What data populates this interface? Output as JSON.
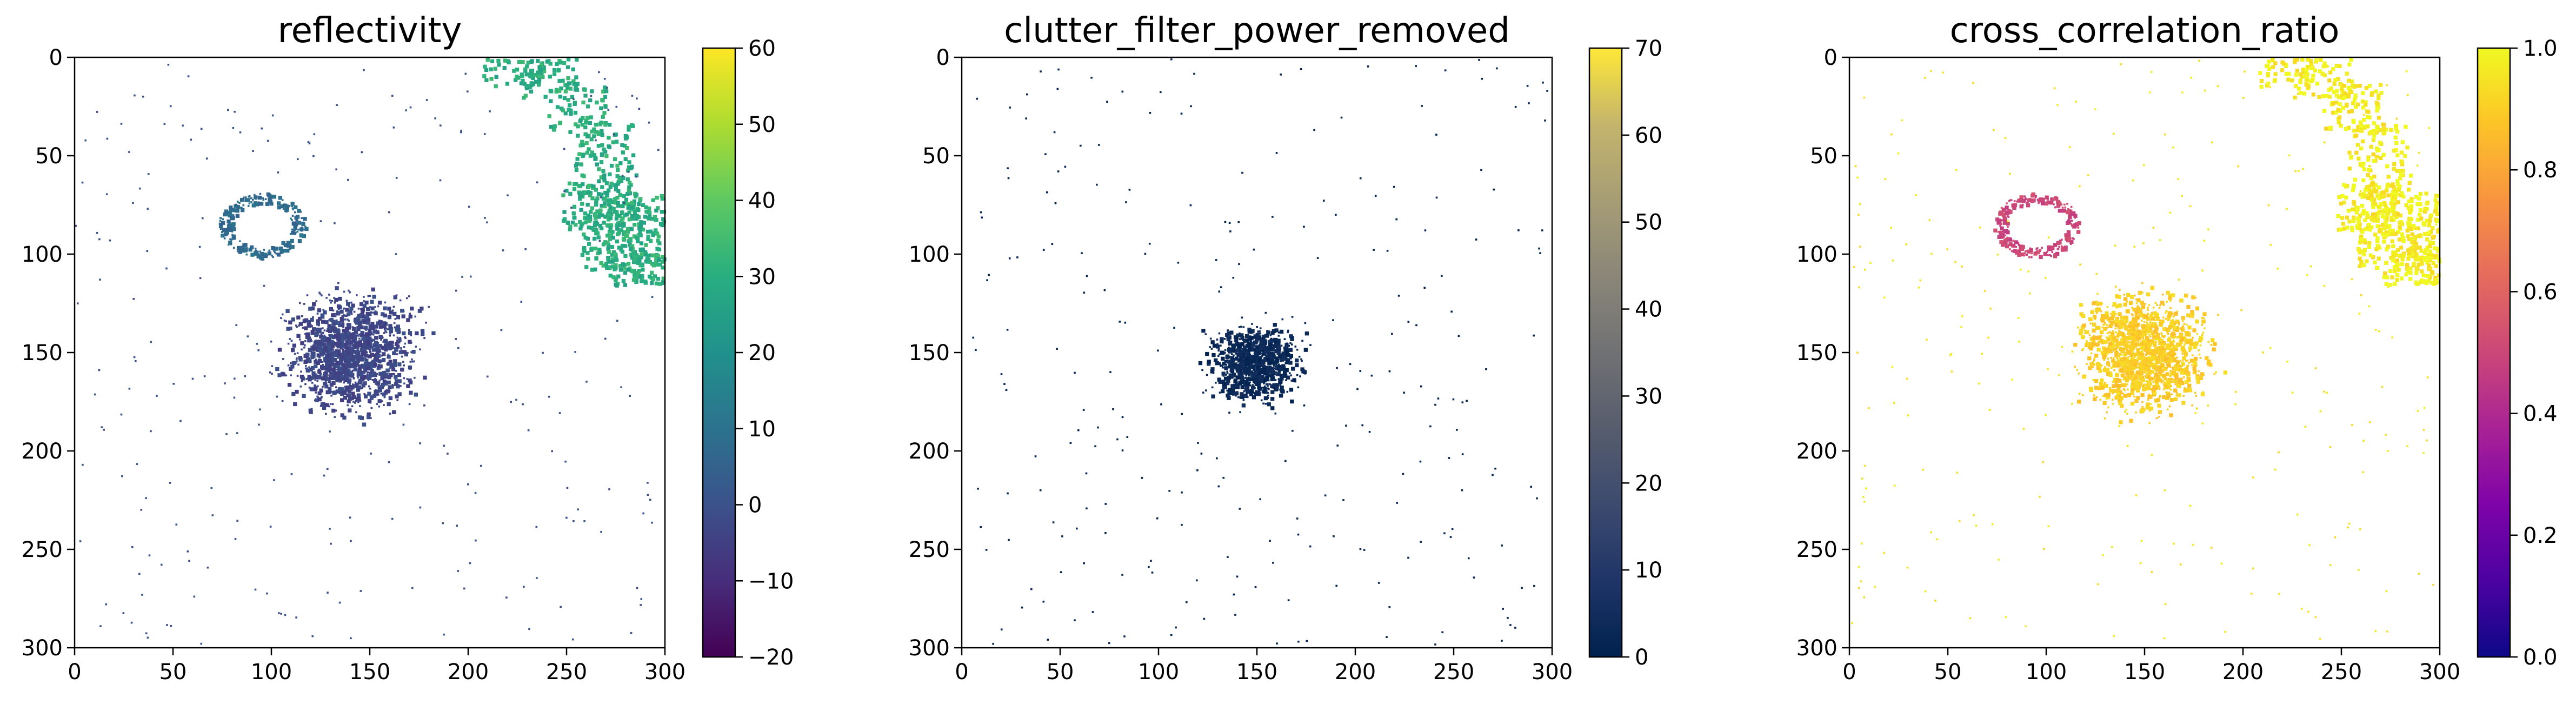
{
  "chart_data": [
    {
      "type": "heatmap",
      "title": "reflectivity",
      "colormap": "viridis",
      "x_ticks": [
        "0",
        "50",
        "100",
        "150",
        "200",
        "250",
        "300"
      ],
      "y_ticks": [
        "0",
        "50",
        "100",
        "150",
        "200",
        "250",
        "300"
      ],
      "xlim": [
        0,
        300
      ],
      "ylim": [
        300,
        0
      ],
      "colorbar": {
        "range": [
          -20,
          60
        ],
        "ticks": [
          "−20",
          "−10",
          "0",
          "10",
          "20",
          "30",
          "40",
          "50",
          "60"
        ]
      },
      "features": [
        {
          "name": "storm cell",
          "center": [
            140,
            150
          ],
          "radius": [
            45,
            40
          ],
          "value": -3
        },
        {
          "name": "ring echo",
          "center": [
            95,
            85
          ],
          "radius": [
            20,
            15
          ],
          "value": 8
        },
        {
          "name": "strong echo band NE",
          "value": 30
        }
      ]
    },
    {
      "type": "heatmap",
      "title": "clutter_filter_power_removed",
      "colormap": "cividis",
      "x_ticks": [
        "0",
        "50",
        "100",
        "150",
        "200",
        "250",
        "300"
      ],
      "y_ticks": [
        "0",
        "50",
        "100",
        "150",
        "200",
        "250",
        "300"
      ],
      "xlim": [
        0,
        300
      ],
      "ylim": [
        300,
        0
      ],
      "colorbar": {
        "range": [
          0,
          70
        ],
        "ticks": [
          "0",
          "10",
          "20",
          "30",
          "40",
          "50",
          "60",
          "70"
        ]
      },
      "features": [
        {
          "name": "clutter core",
          "center": [
            148,
            155
          ],
          "radius": [
            30,
            27
          ],
          "value": 3
        }
      ]
    },
    {
      "type": "heatmap",
      "title": "cross_correlation_ratio",
      "colormap": "plasma",
      "x_ticks": [
        "0",
        "50",
        "100",
        "150",
        "200",
        "250",
        "300"
      ],
      "y_ticks": [
        "0",
        "50",
        "100",
        "150",
        "200",
        "250",
        "300"
      ],
      "xlim": [
        0,
        300
      ],
      "ylim": [
        300,
        0
      ],
      "colorbar": {
        "range": [
          0.0,
          1.0
        ],
        "ticks": [
          "0.0",
          "0.2",
          "0.4",
          "0.6",
          "0.8",
          "1.0"
        ]
      },
      "features": [
        {
          "name": "storm cell",
          "center": [
            150,
            150
          ],
          "radius": [
            45,
            40
          ],
          "value": 0.9
        },
        {
          "name": "ring echo",
          "center": [
            95,
            85
          ],
          "radius": [
            20,
            15
          ],
          "value": 0.5
        },
        {
          "name": "high correlation NE",
          "value": 0.98
        }
      ]
    }
  ]
}
